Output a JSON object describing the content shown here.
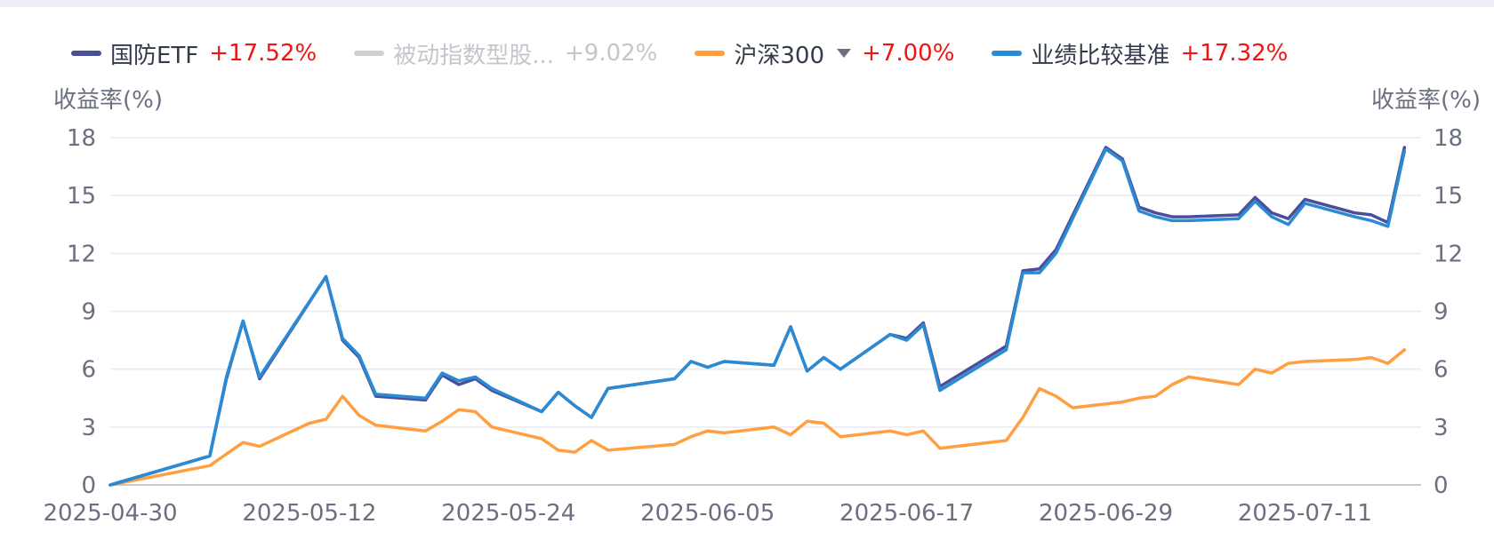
{
  "legend": [
    {
      "name": "国防ETF",
      "change": "+17.52%",
      "color": "#4a4f9a",
      "active": true
    },
    {
      "name": "被动指数型股...",
      "change": "+9.02%",
      "color": "#cfd0d4",
      "active": false
    },
    {
      "name": "沪深300",
      "change": "+7.00%",
      "color": "#ff9f40",
      "active": true,
      "dropdown": true
    },
    {
      "name": "业绩比较基准",
      "change": "+17.32%",
      "color": "#2a8ad4",
      "active": true
    }
  ],
  "chart_data": {
    "type": "line",
    "ylabel_left": "收益率(%)",
    "ylabel_right": "收益率(%)",
    "ylim": [
      0,
      18
    ],
    "yticks": [
      0,
      3,
      6,
      9,
      12,
      15,
      18
    ],
    "xlim": [
      "2025-04-30",
      "2025-07-18"
    ],
    "xticks": [
      "2025-04-30",
      "2025-05-12",
      "2025-05-24",
      "2025-06-05",
      "2025-06-17",
      "2025-06-29",
      "2025-07-11"
    ],
    "grid": true,
    "series": [
      {
        "name": "沪深300",
        "color": "#ff9f40",
        "points": [
          [
            "2025-04-30",
            0
          ],
          [
            "2025-05-06",
            1.0
          ],
          [
            "2025-05-07",
            1.6
          ],
          [
            "2025-05-08",
            2.2
          ],
          [
            "2025-05-09",
            2.0
          ],
          [
            "2025-05-12",
            3.2
          ],
          [
            "2025-05-13",
            3.4
          ],
          [
            "2025-05-14",
            4.6
          ],
          [
            "2025-05-15",
            3.6
          ],
          [
            "2025-05-16",
            3.1
          ],
          [
            "2025-05-19",
            2.8
          ],
          [
            "2025-05-20",
            3.3
          ],
          [
            "2025-05-21",
            3.9
          ],
          [
            "2025-05-22",
            3.8
          ],
          [
            "2025-05-23",
            3.0
          ],
          [
            "2025-05-26",
            2.4
          ],
          [
            "2025-05-27",
            1.8
          ],
          [
            "2025-05-28",
            1.7
          ],
          [
            "2025-05-29",
            2.3
          ],
          [
            "2025-05-30",
            1.8
          ],
          [
            "2025-06-03",
            2.1
          ],
          [
            "2025-06-04",
            2.5
          ],
          [
            "2025-06-05",
            2.8
          ],
          [
            "2025-06-06",
            2.7
          ],
          [
            "2025-06-09",
            3.0
          ],
          [
            "2025-06-10",
            2.6
          ],
          [
            "2025-06-11",
            3.3
          ],
          [
            "2025-06-12",
            3.2
          ],
          [
            "2025-06-13",
            2.5
          ],
          [
            "2025-06-16",
            2.8
          ],
          [
            "2025-06-17",
            2.6
          ],
          [
            "2025-06-18",
            2.8
          ],
          [
            "2025-06-19",
            1.9
          ],
          [
            "2025-06-23",
            2.3
          ],
          [
            "2025-06-24",
            3.5
          ],
          [
            "2025-06-25",
            5.0
          ],
          [
            "2025-06-26",
            4.6
          ],
          [
            "2025-06-27",
            4.0
          ],
          [
            "2025-06-30",
            4.3
          ],
          [
            "2025-07-01",
            4.5
          ],
          [
            "2025-07-02",
            4.6
          ],
          [
            "2025-07-03",
            5.2
          ],
          [
            "2025-07-04",
            5.6
          ],
          [
            "2025-07-07",
            5.2
          ],
          [
            "2025-07-08",
            6.0
          ],
          [
            "2025-07-09",
            5.8
          ],
          [
            "2025-07-10",
            6.3
          ],
          [
            "2025-07-11",
            6.4
          ],
          [
            "2025-07-14",
            6.5
          ],
          [
            "2025-07-15",
            6.6
          ],
          [
            "2025-07-16",
            6.3
          ],
          [
            "2025-07-17",
            7.0
          ]
        ]
      },
      {
        "name": "国防ETF",
        "color": "#4a4f9a",
        "points": [
          [
            "2025-04-30",
            0
          ],
          [
            "2025-05-06",
            1.5
          ],
          [
            "2025-05-07",
            5.5
          ],
          [
            "2025-05-08",
            8.5
          ],
          [
            "2025-05-09",
            5.5
          ],
          [
            "2025-05-13",
            10.8
          ],
          [
            "2025-05-14",
            7.5
          ],
          [
            "2025-05-15",
            6.6
          ],
          [
            "2025-05-16",
            4.6
          ],
          [
            "2025-05-19",
            4.4
          ],
          [
            "2025-05-20",
            5.7
          ],
          [
            "2025-05-21",
            5.2
          ],
          [
            "2025-05-22",
            5.5
          ],
          [
            "2025-05-23",
            4.9
          ],
          [
            "2025-05-26",
            3.8
          ],
          [
            "2025-05-27",
            4.8
          ],
          [
            "2025-05-28",
            4.1
          ],
          [
            "2025-05-29",
            3.5
          ],
          [
            "2025-05-30",
            5.0
          ],
          [
            "2025-06-03",
            5.5
          ],
          [
            "2025-06-04",
            6.4
          ],
          [
            "2025-06-05",
            6.1
          ],
          [
            "2025-06-06",
            6.4
          ],
          [
            "2025-06-09",
            6.2
          ],
          [
            "2025-06-10",
            8.2
          ],
          [
            "2025-06-11",
            5.9
          ],
          [
            "2025-06-12",
            6.6
          ],
          [
            "2025-06-13",
            6.0
          ],
          [
            "2025-06-16",
            7.8
          ],
          [
            "2025-06-17",
            7.6
          ],
          [
            "2025-06-18",
            8.4
          ],
          [
            "2025-06-19",
            5.1
          ],
          [
            "2025-06-23",
            7.2
          ],
          [
            "2025-06-24",
            11.1
          ],
          [
            "2025-06-25",
            11.2
          ],
          [
            "2025-06-26",
            12.2
          ],
          [
            "2025-06-29",
            17.5
          ],
          [
            "2025-06-30",
            16.9
          ],
          [
            "2025-07-01",
            14.4
          ],
          [
            "2025-07-02",
            14.1
          ],
          [
            "2025-07-03",
            13.9
          ],
          [
            "2025-07-04",
            13.9
          ],
          [
            "2025-07-07",
            14.0
          ],
          [
            "2025-07-08",
            14.9
          ],
          [
            "2025-07-09",
            14.1
          ],
          [
            "2025-07-10",
            13.8
          ],
          [
            "2025-07-11",
            14.8
          ],
          [
            "2025-07-14",
            14.1
          ],
          [
            "2025-07-15",
            14.0
          ],
          [
            "2025-07-16",
            13.6
          ],
          [
            "2025-07-17",
            17.5
          ]
        ]
      },
      {
        "name": "业绩比较基准",
        "color": "#2a8ad4",
        "points": [
          [
            "2025-04-30",
            0
          ],
          [
            "2025-05-06",
            1.5
          ],
          [
            "2025-05-07",
            5.6
          ],
          [
            "2025-05-08",
            8.5
          ],
          [
            "2025-05-09",
            5.6
          ],
          [
            "2025-05-13",
            10.8
          ],
          [
            "2025-05-14",
            7.6
          ],
          [
            "2025-05-15",
            6.7
          ],
          [
            "2025-05-16",
            4.7
          ],
          [
            "2025-05-19",
            4.5
          ],
          [
            "2025-05-20",
            5.8
          ],
          [
            "2025-05-21",
            5.4
          ],
          [
            "2025-05-22",
            5.6
          ],
          [
            "2025-05-23",
            5.0
          ],
          [
            "2025-05-26",
            3.8
          ],
          [
            "2025-05-27",
            4.8
          ],
          [
            "2025-05-28",
            4.1
          ],
          [
            "2025-05-29",
            3.5
          ],
          [
            "2025-05-30",
            5.0
          ],
          [
            "2025-06-03",
            5.5
          ],
          [
            "2025-06-04",
            6.4
          ],
          [
            "2025-06-05",
            6.1
          ],
          [
            "2025-06-06",
            6.4
          ],
          [
            "2025-06-09",
            6.2
          ],
          [
            "2025-06-10",
            8.2
          ],
          [
            "2025-06-11",
            5.9
          ],
          [
            "2025-06-12",
            6.6
          ],
          [
            "2025-06-13",
            6.0
          ],
          [
            "2025-06-16",
            7.8
          ],
          [
            "2025-06-17",
            7.5
          ],
          [
            "2025-06-18",
            8.3
          ],
          [
            "2025-06-19",
            4.9
          ],
          [
            "2025-06-23",
            7.0
          ],
          [
            "2025-06-24",
            11.0
          ],
          [
            "2025-06-25",
            11.0
          ],
          [
            "2025-06-26",
            12.0
          ],
          [
            "2025-06-29",
            17.4
          ],
          [
            "2025-06-30",
            16.8
          ],
          [
            "2025-07-01",
            14.2
          ],
          [
            "2025-07-02",
            13.9
          ],
          [
            "2025-07-03",
            13.7
          ],
          [
            "2025-07-04",
            13.7
          ],
          [
            "2025-07-07",
            13.8
          ],
          [
            "2025-07-08",
            14.7
          ],
          [
            "2025-07-09",
            13.9
          ],
          [
            "2025-07-10",
            13.5
          ],
          [
            "2025-07-11",
            14.6
          ],
          [
            "2025-07-14",
            13.9
          ],
          [
            "2025-07-15",
            13.7
          ],
          [
            "2025-07-16",
            13.4
          ],
          [
            "2025-07-17",
            17.3
          ]
        ]
      }
    ]
  }
}
